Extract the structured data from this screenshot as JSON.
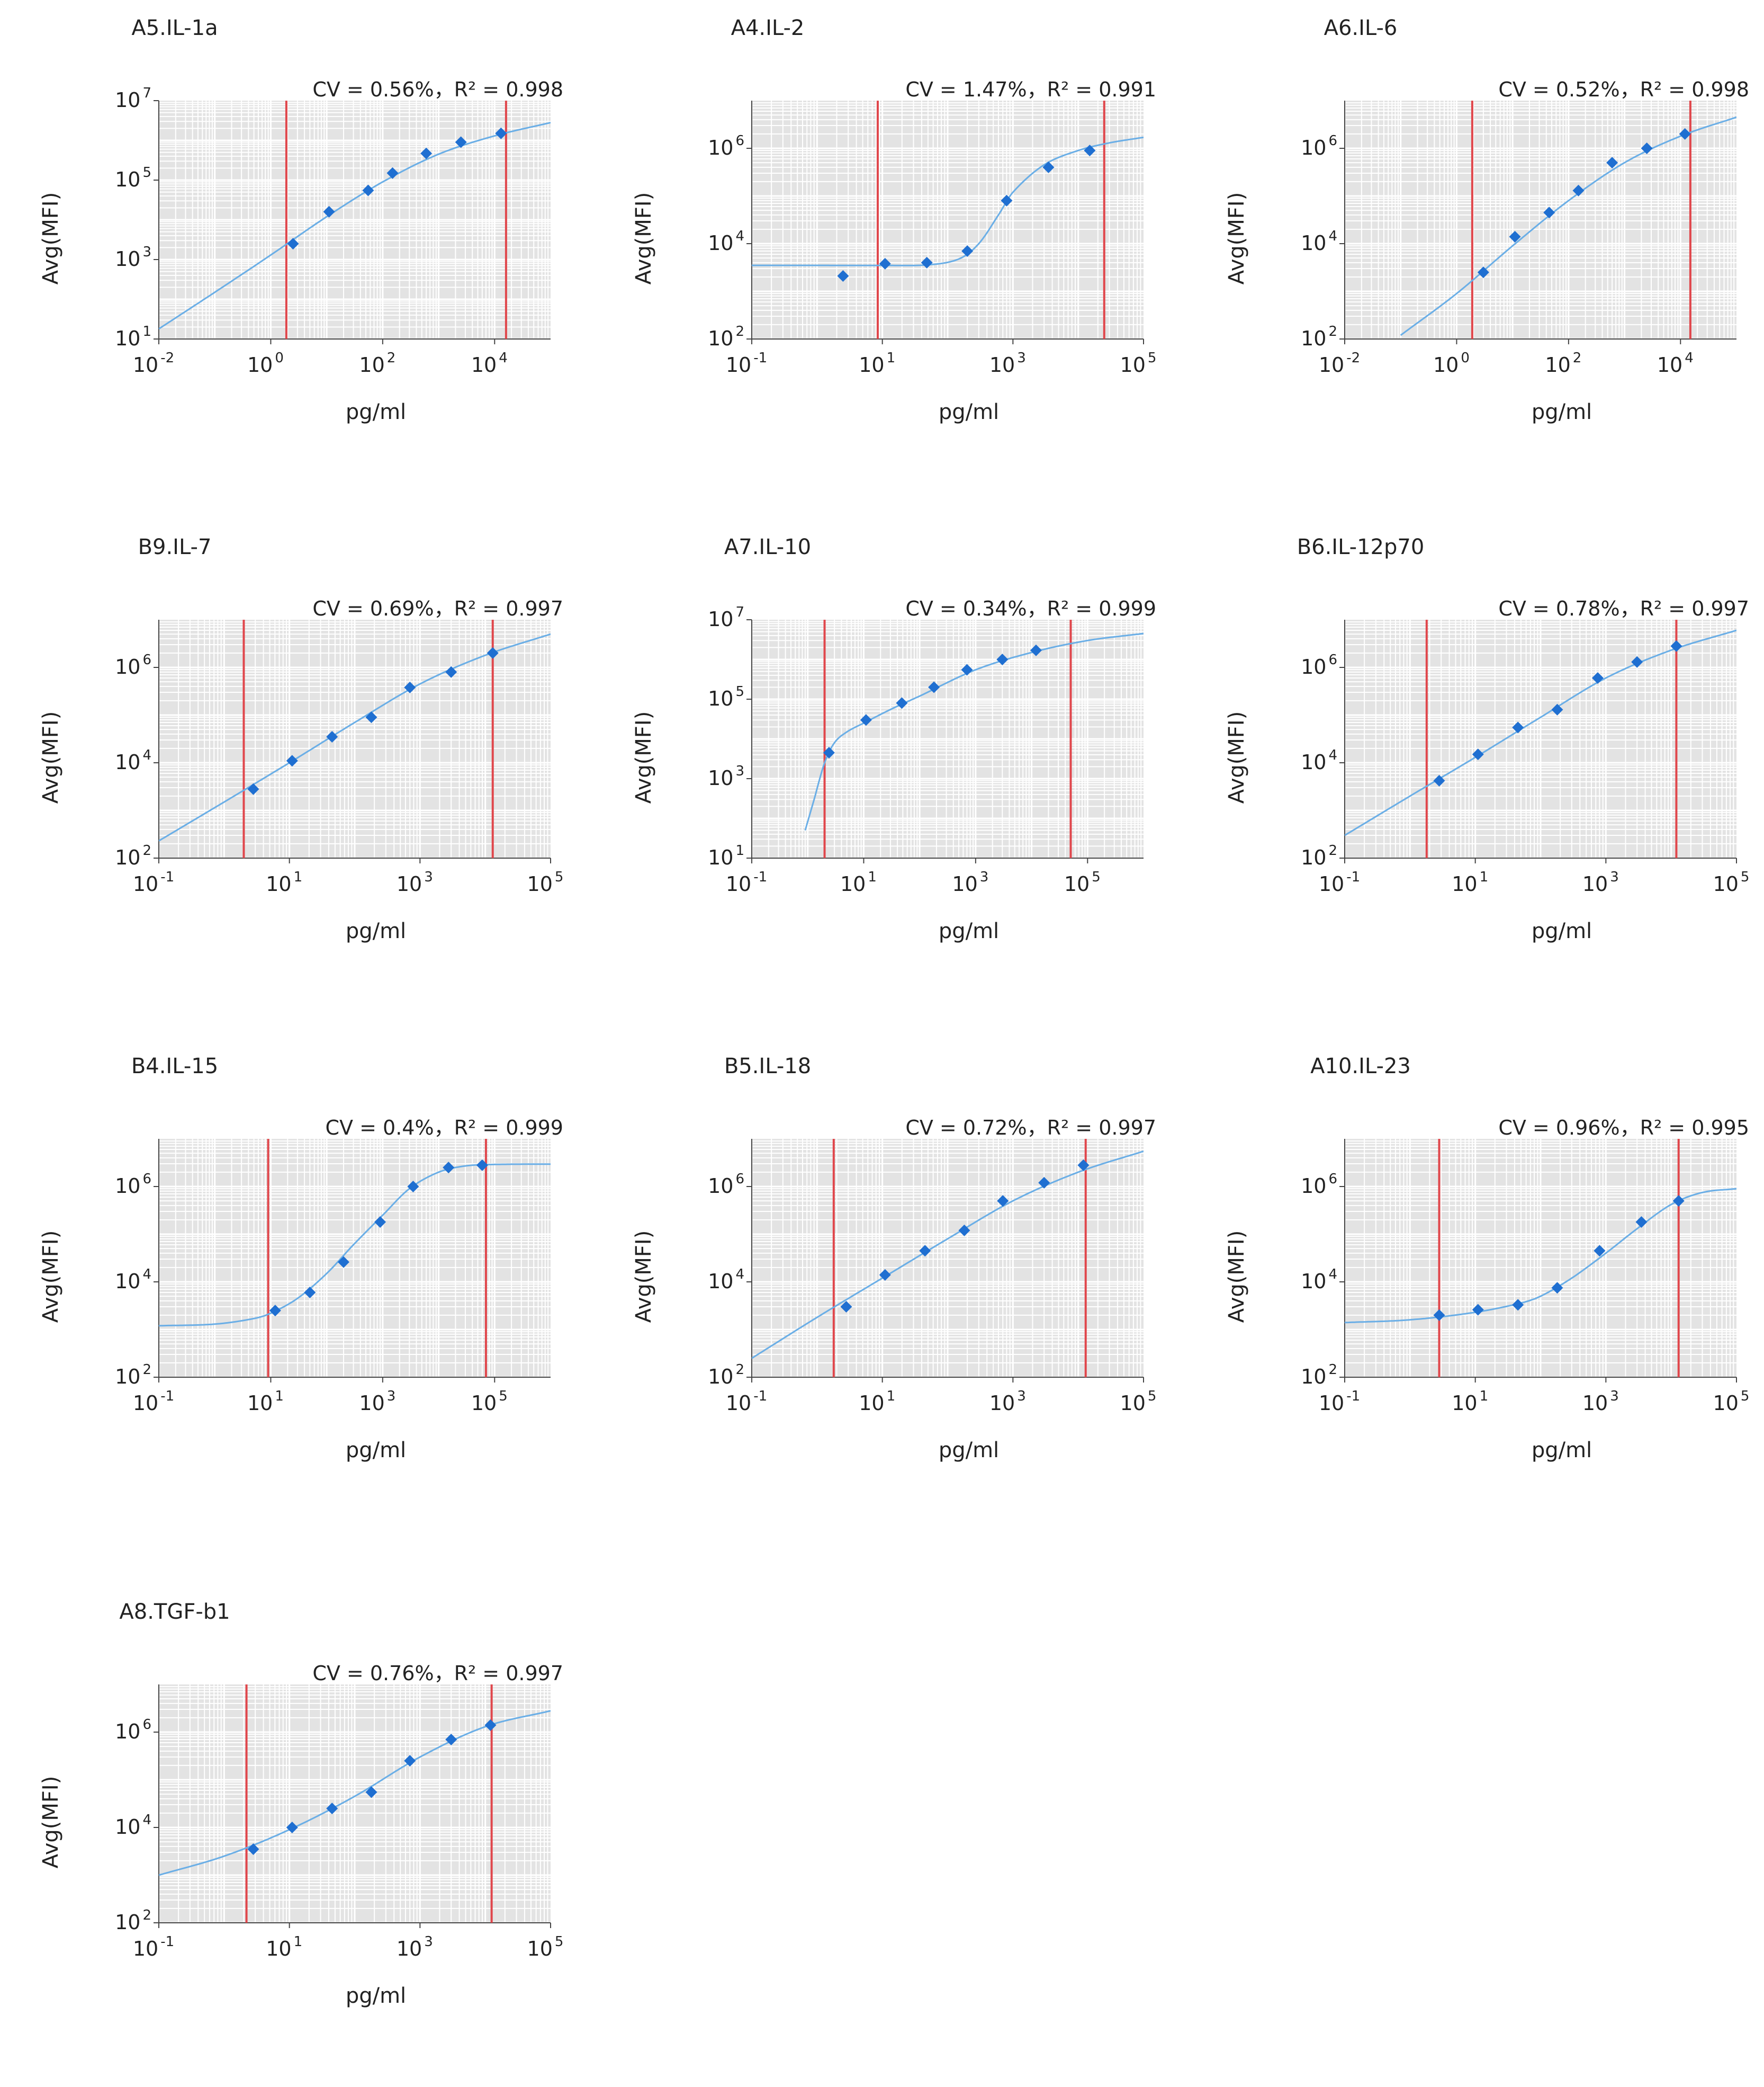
{
  "chart_data": [
    {
      "type": "scatter",
      "title": "A5.IL-1a",
      "annotation": "CV = 0.56%，R² = 0.998",
      "xlabel": "pg/ml",
      "ylabel": "Avg(MFI)",
      "x_scale": "log",
      "y_scale": "log",
      "xlim": [
        0.01,
        100000
      ],
      "ylim": [
        10,
        10000000
      ],
      "x_ticks": [
        {
          "base": "10",
          "exp": "-2"
        },
        {
          "base": "10",
          "exp": "0"
        },
        {
          "base": "10",
          "exp": "2"
        },
        {
          "base": "10",
          "exp": "4"
        }
      ],
      "y_ticks": [
        {
          "base": "10",
          "exp": "1"
        },
        {
          "base": "10",
          "exp": "3"
        },
        {
          "base": "10",
          "exp": "5"
        },
        {
          "base": "10",
          "exp": "7"
        }
      ],
      "points": {
        "x": [
          2.5,
          11,
          55,
          150,
          600,
          2500,
          13000
        ],
        "y": [
          2500,
          16000,
          55000,
          150000,
          470000,
          900000,
          1500000
        ]
      },
      "curve": {
        "x": [
          0.01,
          0.1,
          1,
          10,
          100,
          1000,
          10000,
          100000
        ],
        "y": [
          18,
          150,
          1300,
          12000,
          90000,
          450000,
          1300000,
          2800000
        ]
      },
      "limits": [
        1.9,
        16000
      ],
      "grid": true
    },
    {
      "type": "scatter",
      "title": "A4.IL-2",
      "annotation": "CV = 1.47%，R² = 0.991",
      "xlabel": "pg/ml",
      "ylabel": "Avg(MFI)",
      "x_scale": "log",
      "y_scale": "log",
      "xlim": [
        0.1,
        100000
      ],
      "ylim": [
        100,
        10000000
      ],
      "x_ticks": [
        {
          "base": "10",
          "exp": "-1"
        },
        {
          "base": "10",
          "exp": "1"
        },
        {
          "base": "10",
          "exp": "3"
        },
        {
          "base": "10",
          "exp": "5"
        }
      ],
      "y_ticks": [
        {
          "base": "10",
          "exp": "2"
        },
        {
          "base": "10",
          "exp": "4"
        },
        {
          "base": "10",
          "exp": "6"
        }
      ],
      "points": {
        "x": [
          2.5,
          11,
          48,
          200,
          800,
          3500,
          15000
        ],
        "y": [
          2100,
          3800,
          4000,
          7000,
          80000,
          400000,
          900000
        ]
      },
      "curve": {
        "x": [
          0.1,
          1,
          10,
          50,
          150,
          300,
          600,
          1000,
          3000,
          10000,
          30000,
          100000
        ],
        "y": [
          3500,
          3500,
          3500,
          3600,
          4800,
          10000,
          40000,
          120000,
          450000,
          900000,
          1300000,
          1700000
        ]
      },
      "limits": [
        8.5,
        25000
      ],
      "grid": true
    },
    {
      "type": "scatter",
      "title": "A6.IL-6",
      "annotation": "CV = 0.52%，R² = 0.998",
      "xlabel": "pg/ml",
      "ylabel": "Avg(MFI)",
      "x_scale": "log",
      "y_scale": "log",
      "xlim": [
        0.01,
        100000
      ],
      "ylim": [
        100,
        10000000
      ],
      "x_ticks": [
        {
          "base": "10",
          "exp": "-2"
        },
        {
          "base": "10",
          "exp": "0"
        },
        {
          "base": "10",
          "exp": "2"
        },
        {
          "base": "10",
          "exp": "4"
        }
      ],
      "y_ticks": [
        {
          "base": "10",
          "exp": "2"
        },
        {
          "base": "10",
          "exp": "4"
        },
        {
          "base": "10",
          "exp": "6"
        }
      ],
      "points": {
        "x": [
          3,
          11,
          45,
          150,
          600,
          2500,
          12000
        ],
        "y": [
          2500,
          14000,
          45000,
          130000,
          500000,
          1000000,
          2000000
        ]
      },
      "curve": {
        "x": [
          0.1,
          1,
          10,
          100,
          1000,
          10000,
          100000
        ],
        "y": [
          120,
          900,
          9000,
          80000,
          500000,
          1800000,
          4500000
        ]
      },
      "limits": [
        1.9,
        15000
      ],
      "grid": true
    },
    {
      "type": "scatter",
      "title": "B9.IL-7",
      "annotation": "CV = 0.69%，R² = 0.997",
      "xlabel": "pg/ml",
      "ylabel": "Avg(MFI)",
      "x_scale": "log",
      "y_scale": "log",
      "xlim": [
        0.1,
        100000
      ],
      "ylim": [
        100,
        10000000
      ],
      "x_ticks": [
        {
          "base": "10",
          "exp": "-1"
        },
        {
          "base": "10",
          "exp": "1"
        },
        {
          "base": "10",
          "exp": "3"
        },
        {
          "base": "10",
          "exp": "5"
        }
      ],
      "y_ticks": [
        {
          "base": "10",
          "exp": "2"
        },
        {
          "base": "10",
          "exp": "4"
        },
        {
          "base": "10",
          "exp": "6"
        }
      ],
      "points": {
        "x": [
          2.8,
          11,
          45,
          180,
          700,
          3000,
          13000
        ],
        "y": [
          2800,
          11000,
          35000,
          90000,
          380000,
          800000,
          2000000
        ]
      },
      "curve": {
        "x": [
          0.1,
          1,
          10,
          100,
          1000,
          10000,
          100000
        ],
        "y": [
          230,
          1500,
          10000,
          70000,
          450000,
          1800000,
          5000000
        ]
      },
      "limits": [
        2,
        13000
      ],
      "grid": true
    },
    {
      "type": "scatter",
      "title": "A7.IL-10",
      "annotation": "CV = 0.34%，R² = 0.999",
      "xlabel": "pg/ml",
      "ylabel": "Avg(MFI)",
      "x_scale": "log",
      "y_scale": "log",
      "xlim": [
        0.1,
        1000000
      ],
      "ylim": [
        10,
        10000000
      ],
      "x_ticks": [
        {
          "base": "10",
          "exp": "-1"
        },
        {
          "base": "10",
          "exp": "1"
        },
        {
          "base": "10",
          "exp": "3"
        },
        {
          "base": "10",
          "exp": "5"
        }
      ],
      "y_ticks": [
        {
          "base": "10",
          "exp": "1"
        },
        {
          "base": "10",
          "exp": "3"
        },
        {
          "base": "10",
          "exp": "5"
        },
        {
          "base": "10",
          "exp": "7"
        }
      ],
      "points": {
        "x": [
          2.4,
          11,
          48,
          180,
          700,
          3000,
          12000
        ],
        "y": [
          4500,
          30000,
          80000,
          200000,
          550000,
          1000000,
          1700000
        ]
      },
      "curve": {
        "x": [
          0.9,
          1.3,
          2,
          3,
          5,
          10,
          30,
          100,
          1000,
          10000,
          100000,
          1000000
        ],
        "y": [
          50,
          300,
          2500,
          8000,
          15000,
          25000,
          55000,
          120000,
          550000,
          1500000,
          3000000,
          4500000
        ]
      },
      "limits": [
        2,
        50000
      ],
      "grid": true
    },
    {
      "type": "scatter",
      "title": "B6.IL-12p70",
      "annotation": "CV = 0.78%，R² = 0.997",
      "xlabel": "pg/ml",
      "ylabel": "Avg(MFI)",
      "x_scale": "log",
      "y_scale": "log",
      "xlim": [
        0.1,
        100000
      ],
      "ylim": [
        100,
        10000000
      ],
      "x_ticks": [
        {
          "base": "10",
          "exp": "-1"
        },
        {
          "base": "10",
          "exp": "1"
        },
        {
          "base": "10",
          "exp": "3"
        },
        {
          "base": "10",
          "exp": "5"
        }
      ],
      "y_ticks": [
        {
          "base": "10",
          "exp": "2"
        },
        {
          "base": "10",
          "exp": "4"
        },
        {
          "base": "10",
          "exp": "6"
        }
      ],
      "points": {
        "x": [
          2.8,
          11,
          45,
          180,
          750,
          3000,
          12000
        ],
        "y": [
          4200,
          15000,
          55000,
          130000,
          600000,
          1300000,
          2800000
        ]
      },
      "curve": {
        "x": [
          0.1,
          1,
          10,
          100,
          1000,
          10000,
          100000
        ],
        "y": [
          300,
          2000,
          13000,
          90000,
          600000,
          2300000,
          6000000
        ]
      },
      "limits": [
        1.8,
        12000
      ],
      "grid": true
    },
    {
      "type": "scatter",
      "title": "B4.IL-15",
      "annotation": "CV = 0.4%，R² = 0.999",
      "xlabel": "pg/ml",
      "ylabel": "Avg(MFI)",
      "x_scale": "log",
      "y_scale": "log",
      "xlim": [
        0.1,
        1000000
      ],
      "ylim": [
        100,
        10000000
      ],
      "x_ticks": [
        {
          "base": "10",
          "exp": "-1"
        },
        {
          "base": "10",
          "exp": "1"
        },
        {
          "base": "10",
          "exp": "3"
        },
        {
          "base": "10",
          "exp": "5"
        }
      ],
      "y_ticks": [
        {
          "base": "10",
          "exp": "2"
        },
        {
          "base": "10",
          "exp": "4"
        },
        {
          "base": "10",
          "exp": "6"
        }
      ],
      "points": {
        "x": [
          12,
          50,
          200,
          900,
          3500,
          15000,
          60000
        ],
        "y": [
          2500,
          6000,
          26000,
          180000,
          1000000,
          2500000,
          2800000
        ]
      },
      "curve": {
        "x": [
          0.1,
          1,
          5,
          10,
          30,
          100,
          300,
          1000,
          3000,
          10000,
          30000,
          100000,
          1000000
        ],
        "y": [
          1200,
          1300,
          1700,
          2200,
          4500,
          15000,
          60000,
          250000,
          900000,
          2000000,
          2700000,
          2900000,
          2950000
        ]
      },
      "limits": [
        9,
        70000
      ],
      "grid": true
    },
    {
      "type": "scatter",
      "title": "B5.IL-18",
      "annotation": "CV = 0.72%，R² = 0.997",
      "xlabel": "pg/ml",
      "ylabel": "Avg(MFI)",
      "x_scale": "log",
      "y_scale": "log",
      "xlim": [
        0.1,
        100000
      ],
      "ylim": [
        100,
        10000000
      ],
      "x_ticks": [
        {
          "base": "10",
          "exp": "-1"
        },
        {
          "base": "10",
          "exp": "1"
        },
        {
          "base": "10",
          "exp": "3"
        },
        {
          "base": "10",
          "exp": "5"
        }
      ],
      "y_ticks": [
        {
          "base": "10",
          "exp": "2"
        },
        {
          "base": "10",
          "exp": "4"
        },
        {
          "base": "10",
          "exp": "6"
        }
      ],
      "points": {
        "x": [
          2.8,
          11,
          45,
          180,
          700,
          3000,
          12000
        ],
        "y": [
          3000,
          14000,
          45000,
          120000,
          500000,
          1200000,
          2800000
        ]
      },
      "curve": {
        "x": [
          0.1,
          1,
          10,
          100,
          1000,
          10000,
          100000
        ],
        "y": [
          250,
          1800,
          12000,
          80000,
          500000,
          2000000,
          5500000
        ]
      },
      "limits": [
        1.8,
        13000
      ],
      "grid": true
    },
    {
      "type": "scatter",
      "title": "A10.IL-23",
      "annotation": "CV = 0.96%，R² = 0.995",
      "xlabel": "pg/ml",
      "ylabel": "Avg(MFI)",
      "x_scale": "log",
      "y_scale": "log",
      "xlim": [
        0.1,
        100000
      ],
      "ylim": [
        100,
        10000000
      ],
      "x_ticks": [
        {
          "base": "10",
          "exp": "-1"
        },
        {
          "base": "10",
          "exp": "1"
        },
        {
          "base": "10",
          "exp": "3"
        },
        {
          "base": "10",
          "exp": "5"
        }
      ],
      "y_ticks": [
        {
          "base": "10",
          "exp": "2"
        },
        {
          "base": "10",
          "exp": "4"
        },
        {
          "base": "10",
          "exp": "6"
        }
      ],
      "points": {
        "x": [
          2.8,
          11,
          45,
          180,
          800,
          3500,
          13000
        ],
        "y": [
          2000,
          2600,
          3300,
          7500,
          45000,
          180000,
          500000
        ]
      },
      "curve": {
        "x": [
          0.1,
          1,
          10,
          50,
          100,
          300,
          1000,
          3000,
          10000,
          30000,
          100000
        ],
        "y": [
          1400,
          1600,
          2300,
          3600,
          5000,
          12000,
          40000,
          130000,
          420000,
          750000,
          900000
        ]
      },
      "limits": [
        2.8,
        13000
      ],
      "grid": true
    },
    {
      "type": "scatter",
      "title": "A8.TGF-b1",
      "annotation": "CV = 0.76%，R² = 0.997",
      "xlabel": "pg/ml",
      "ylabel": "Avg(MFI)",
      "x_scale": "log",
      "y_scale": "log",
      "xlim": [
        0.1,
        100000
      ],
      "ylim": [
        100,
        10000000
      ],
      "x_ticks": [
        {
          "base": "10",
          "exp": "-1"
        },
        {
          "base": "10",
          "exp": "1"
        },
        {
          "base": "10",
          "exp": "3"
        },
        {
          "base": "10",
          "exp": "5"
        }
      ],
      "y_ticks": [
        {
          "base": "10",
          "exp": "2"
        },
        {
          "base": "10",
          "exp": "4"
        },
        {
          "base": "10",
          "exp": "6"
        }
      ],
      "points": {
        "x": [
          2.8,
          11,
          45,
          180,
          700,
          3000,
          12000
        ],
        "y": [
          3500,
          10000,
          25000,
          55000,
          250000,
          700000,
          1400000
        ]
      },
      "curve": {
        "x": [
          0.1,
          1,
          10,
          100,
          1000,
          10000,
          100000
        ],
        "y": [
          1000,
          2500,
          9000,
          45000,
          300000,
          1300000,
          2800000
        ]
      },
      "limits": [
        2.2,
        12500
      ],
      "grid": true
    }
  ]
}
